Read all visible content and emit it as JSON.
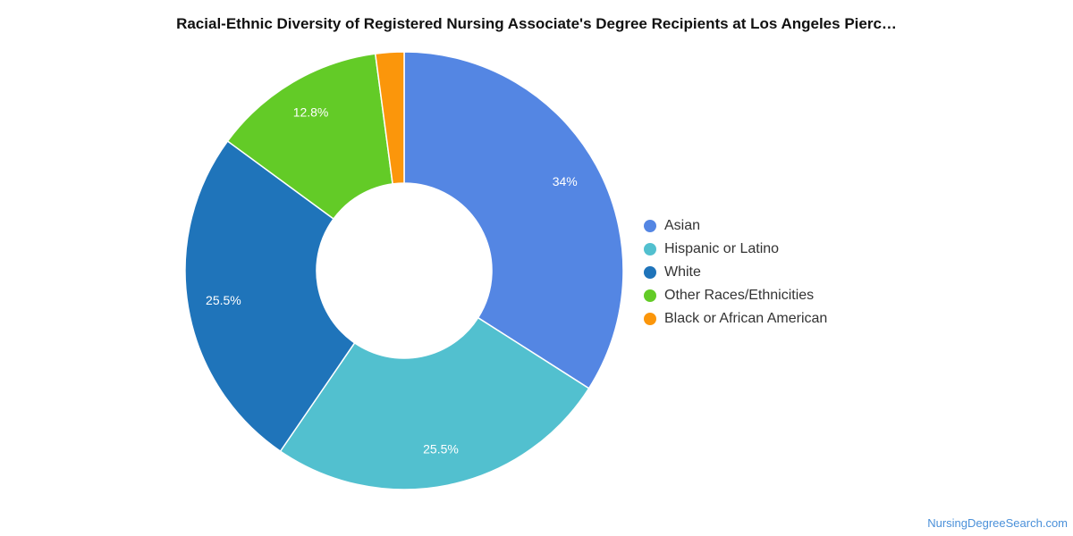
{
  "chart_data": {
    "type": "pie",
    "title": "Racial-Ethnic Diversity of Registered Nursing Associate's Degree Recipients at Los Angeles Pierc…",
    "donut": true,
    "categories": [
      "Asian",
      "Hispanic or Latino",
      "White",
      "Other Races/Ethnicities",
      "Black or African American"
    ],
    "values": [
      34.0,
      25.5,
      25.5,
      12.8,
      2.1
    ],
    "labels": [
      "34%",
      "25.5%",
      "25.5%",
      "12.8%",
      ""
    ],
    "colors": [
      "#5486e3",
      "#52c0cf",
      "#1f74ba",
      "#63cb27",
      "#fb960b"
    ],
    "legend_position": "right"
  },
  "source": "NursingDegreeSearch.com"
}
